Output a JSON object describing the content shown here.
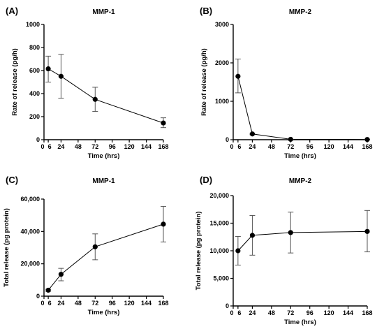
{
  "chart_data": [
    {
      "panel": "(A)",
      "type": "line",
      "title": "MMP-1",
      "xlabel": "Time (hrs)",
      "ylabel": "Rate of release (pg/h)",
      "xlim": [
        0,
        168
      ],
      "ylim": [
        0,
        1000
      ],
      "xticks": [
        0,
        6,
        24,
        48,
        72,
        96,
        120,
        144,
        168
      ],
      "xtick_labels": [
        "0",
        "6",
        "24",
        "48",
        "72",
        "96",
        "120",
        "144",
        "168"
      ],
      "yticks": [
        0,
        200,
        400,
        600,
        800,
        1000
      ],
      "ytick_labels": [
        "0",
        "200",
        "400",
        "600",
        "800",
        "1000"
      ],
      "series": [
        {
          "x": [
            6,
            24,
            72,
            168
          ],
          "y": [
            615,
            550,
            350,
            145
          ],
          "err_low": [
            500,
            360,
            245,
            105
          ],
          "err_high": [
            725,
            740,
            455,
            190
          ]
        }
      ]
    },
    {
      "panel": "(B)",
      "type": "line",
      "title": "MMP-2",
      "xlabel": "Time (hrs)",
      "ylabel": "Rate of release (pg/h)",
      "xlim": [
        0,
        168
      ],
      "ylim": [
        0,
        3000
      ],
      "xticks": [
        0,
        6,
        24,
        48,
        72,
        96,
        120,
        144,
        168
      ],
      "xtick_labels": [
        "0",
        "6",
        "24",
        "48",
        "72",
        "96",
        "120",
        "144",
        "168"
      ],
      "yticks": [
        0,
        1000,
        2000,
        3000
      ],
      "ytick_labels": [
        "0",
        "1000",
        "2000",
        "3000"
      ],
      "series": [
        {
          "x": [
            6,
            24,
            72,
            168
          ],
          "y": [
            1650,
            150,
            10,
            5
          ],
          "err_low": [
            1220,
            130,
            5,
            2
          ],
          "err_high": [
            2100,
            170,
            15,
            8
          ]
        }
      ]
    },
    {
      "panel": "(C)",
      "type": "line",
      "title": "MMP-1",
      "xlabel": "Time (hrs)",
      "ylabel": "Total release (pg protein)",
      "xlim": [
        0,
        168
      ],
      "ylim": [
        0,
        60000
      ],
      "xticks": [
        0,
        6,
        24,
        48,
        72,
        96,
        120,
        144,
        168
      ],
      "xtick_labels": [
        "0",
        "6",
        "24",
        "48",
        "72",
        "96",
        "120",
        "144",
        "168"
      ],
      "yticks": [
        0,
        20000,
        40000,
        60000
      ],
      "ytick_labels": [
        "0",
        "20,000",
        "40,000",
        "60,000"
      ],
      "series": [
        {
          "x": [
            6,
            24,
            72,
            168
          ],
          "y": [
            3700,
            13500,
            30500,
            44500
          ],
          "err_low": [
            3000,
            9500,
            22500,
            33500
          ],
          "err_high": [
            4300,
            17200,
            38500,
            55500
          ]
        }
      ]
    },
    {
      "panel": "(D)",
      "type": "line",
      "title": "MMP-2",
      "xlabel": "Time (hrs)",
      "ylabel": "Total release (pg protein)",
      "xlim": [
        0,
        168
      ],
      "ylim": [
        0,
        20000
      ],
      "xticks": [
        0,
        6,
        24,
        48,
        72,
        96,
        120,
        144,
        168
      ],
      "xtick_labels": [
        "0",
        "6",
        "24",
        "48",
        "72",
        "96",
        "120",
        "144",
        "168"
      ],
      "yticks": [
        0,
        5000,
        10000,
        15000,
        20000
      ],
      "ytick_labels": [
        "0",
        "5,000",
        "10,000",
        "15,000",
        "20,000"
      ],
      "series": [
        {
          "x": [
            6,
            24,
            72,
            168
          ],
          "y": [
            10000,
            12800,
            13300,
            13500
          ],
          "err_low": [
            7400,
            9200,
            9600,
            9800
          ],
          "err_high": [
            12600,
            16400,
            17000,
            17300
          ]
        }
      ]
    }
  ]
}
